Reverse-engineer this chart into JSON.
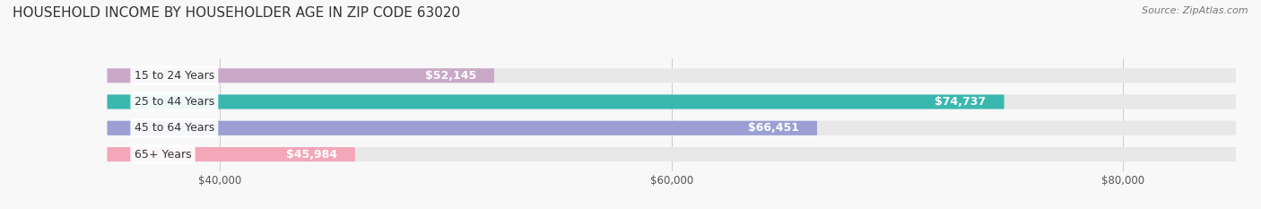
{
  "title": "HOUSEHOLD INCOME BY HOUSEHOLDER AGE IN ZIP CODE 63020",
  "source": "Source: ZipAtlas.com",
  "categories": [
    "15 to 24 Years",
    "25 to 44 Years",
    "45 to 64 Years",
    "65+ Years"
  ],
  "values": [
    52145,
    74737,
    66451,
    45984
  ],
  "labels": [
    "$52,145",
    "$74,737",
    "$66,451",
    "$45,984"
  ],
  "bar_colors": [
    "#c9a8c8",
    "#3ab8b0",
    "#9b9fd4",
    "#f4a7b9"
  ],
  "bar_bg_color": "#e8e8e8",
  "xmin": 35000,
  "xmax": 85000,
  "xticks": [
    40000,
    60000,
    80000
  ],
  "xticklabels": [
    "$40,000",
    "$60,000",
    "$80,000"
  ],
  "title_fontsize": 11,
  "source_fontsize": 8,
  "label_fontsize": 9,
  "tick_fontsize": 8.5,
  "background_color": "#f8f8f8",
  "bar_height": 0.55,
  "label_inside_color": "#ffffff",
  "label_outside_color": "#555555",
  "label_bg_color": "#ffffff"
}
